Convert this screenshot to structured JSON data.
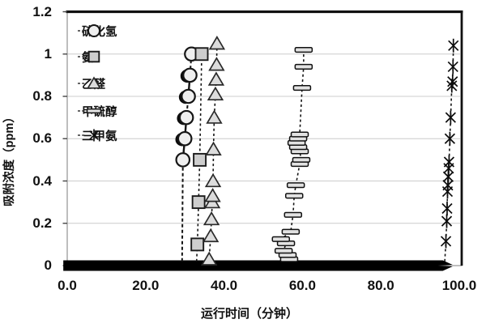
{
  "chart_data": {
    "type": "scatter",
    "title": "",
    "xlabel": "运行时间（分钟）",
    "ylabel": "吸附浓度（ppm）",
    "xlim": [
      0,
      100
    ],
    "ylim": [
      0,
      1.2
    ],
    "xticks": [
      "0.0",
      "20.0",
      "40.0",
      "60.0",
      "80.0",
      "100.0"
    ],
    "xtick_values": [
      0,
      20,
      40,
      60,
      80,
      100
    ],
    "yticks": [
      "0",
      "0.2",
      "0.4",
      "0.6",
      "0.8",
      "1",
      "1.2"
    ],
    "ytick_values": [
      0,
      0.2,
      0.4,
      0.6,
      0.8,
      1,
      1.2
    ],
    "grid": "horizontal",
    "legend_position": "upper-left-inside",
    "baseline_band": {
      "y": 0,
      "x_start": -1,
      "x_end": 95.8,
      "tip_x": 98.3,
      "note": "dense overlapping points of all series at y≈0 forming a solid black band ending in an arrow tip"
    },
    "series": [
      {
        "name": "硫化氢",
        "marker": "circle",
        "line": "dashed",
        "line_anchor": [
          29.3,
          0.02
        ],
        "points": [
          [
            29.5,
            0.5
          ],
          [
            30.0,
            0.6
          ],
          [
            30.4,
            0.7
          ],
          [
            30.9,
            0.8
          ],
          [
            31.3,
            0.9
          ],
          [
            31.7,
            1.0
          ]
        ],
        "half_filled_y": [
          0.6,
          0.7,
          0.8,
          0.9
        ],
        "solid_segments": [
          [
            0.5,
            0.7
          ],
          [
            0.8,
            0.9
          ]
        ]
      },
      {
        "name": "氨",
        "marker": "square",
        "line": "dashed",
        "line_anchor": [
          33.0,
          0.02
        ],
        "points": [
          [
            33.2,
            0.1
          ],
          [
            33.5,
            0.3
          ],
          [
            33.8,
            0.5
          ],
          [
            34.3,
            1.0
          ]
        ]
      },
      {
        "name": "乙醛",
        "marker": "triangle",
        "line": "dashed",
        "line_anchor": [
          36.1,
          0.02
        ],
        "points": [
          [
            36.2,
            0.03
          ],
          [
            36.6,
            0.14
          ],
          [
            36.8,
            0.22
          ],
          [
            37.0,
            0.3
          ],
          [
            37.1,
            0.33
          ],
          [
            37.2,
            0.4
          ],
          [
            37.3,
            0.55
          ],
          [
            37.5,
            0.7
          ],
          [
            37.8,
            0.81
          ],
          [
            38.0,
            0.88
          ],
          [
            38.1,
            0.95
          ],
          [
            38.2,
            1.05
          ]
        ]
      },
      {
        "name": "甲硫醇",
        "marker": "hbar",
        "line": "dashed",
        "line_anchor": [
          55.0,
          0.02
        ],
        "points": [
          [
            56.6,
            0.03
          ],
          [
            56.2,
            0.05
          ],
          [
            55.2,
            0.07
          ],
          [
            55.8,
            0.105
          ],
          [
            54.5,
            0.125
          ],
          [
            57.0,
            0.16
          ],
          [
            57.6,
            0.24
          ],
          [
            57.9,
            0.33
          ],
          [
            58.3,
            0.38
          ],
          [
            59.3,
            0.48
          ],
          [
            59.7,
            0.5
          ],
          [
            59.3,
            0.54
          ],
          [
            58.9,
            0.56
          ],
          [
            58.5,
            0.58
          ],
          [
            58.9,
            0.6
          ],
          [
            59.3,
            0.62
          ],
          [
            59.9,
            0.84
          ],
          [
            60.3,
            0.94
          ],
          [
            60.3,
            1.02
          ]
        ]
      },
      {
        "name": "三甲氨",
        "marker": "asterisk",
        "line": "dashed",
        "line_anchor": [
          96.3,
          0.02
        ],
        "points": [
          [
            96.6,
            0.115
          ],
          [
            96.8,
            0.21
          ],
          [
            96.9,
            0.27
          ],
          [
            97.0,
            0.35
          ],
          [
            97.1,
            0.38
          ],
          [
            97.2,
            0.42
          ],
          [
            97.3,
            0.46
          ],
          [
            97.4,
            0.49
          ],
          [
            97.6,
            0.6
          ],
          [
            97.8,
            0.7
          ],
          [
            98.1,
            0.85
          ],
          [
            98.3,
            0.87
          ],
          [
            98.4,
            0.94
          ],
          [
            98.5,
            1.04
          ]
        ]
      }
    ]
  },
  "legend": {
    "items": [
      {
        "label": "硫化氢",
        "marker": "circle"
      },
      {
        "label": "氨",
        "marker": "square"
      },
      {
        "label": "乙醛",
        "marker": "triangle"
      },
      {
        "label": "甲硫醇",
        "marker": "hbar"
      },
      {
        "label": "三甲氨",
        "marker": "asterisk"
      }
    ]
  },
  "colors": {
    "marker_fill": "#e2e2e2",
    "marker_stroke": "#161616",
    "line": "#151515",
    "grid": "#cccccc",
    "frame": "#9a9a9a",
    "frame_accent": "#111111",
    "band": "#000000",
    "text": "#111111"
  }
}
